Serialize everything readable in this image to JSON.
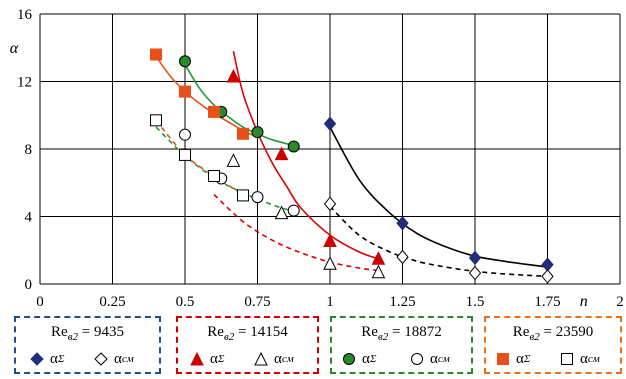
{
  "chart_data": {
    "type": "scatter",
    "xlabel": "n",
    "ylabel": "α",
    "xlim": [
      0,
      2
    ],
    "ylim": [
      0,
      16
    ],
    "x_ticks": [
      "0",
      "0.25",
      "0.5",
      "0.75",
      "1",
      "1.25",
      "1.5",
      "1.75",
      "2"
    ],
    "y_ticks": [
      "0",
      "4",
      "8",
      "12",
      "16"
    ],
    "grid": true,
    "legend_placement": "bottom",
    "series": [
      {
        "group": "Re = 9435",
        "name": "α_Σ",
        "color": "#1f2d7a",
        "marker": "diamond",
        "filled": true,
        "x": [
          1.0,
          1.25,
          1.5,
          1.75
        ],
        "y": [
          9.5,
          3.6,
          1.55,
          1.15
        ],
        "fit_x": [
          1.0,
          1.1,
          1.2,
          1.3,
          1.4,
          1.5,
          1.6,
          1.75
        ],
        "fit_y": [
          9.3,
          6.2,
          4.3,
          3.0,
          2.2,
          1.65,
          1.35,
          1.0
        ],
        "fit_color": "#000000",
        "fit_dash": false
      },
      {
        "group": "Re = 9435",
        "name": "α_см",
        "color": "#000000",
        "marker": "diamond",
        "filled": false,
        "x": [
          1.0,
          1.25,
          1.5,
          1.75
        ],
        "y": [
          4.75,
          1.6,
          0.65,
          0.45
        ],
        "fit_x": [
          1.0,
          1.1,
          1.2,
          1.3,
          1.4,
          1.5,
          1.6,
          1.75
        ],
        "fit_y": [
          4.6,
          2.9,
          1.95,
          1.35,
          1.0,
          0.75,
          0.6,
          0.45
        ],
        "fit_color": "#000000",
        "fit_dash": true
      },
      {
        "group": "Re = 14154",
        "name": "α_Σ",
        "color": "#cc0000",
        "marker": "triangle",
        "filled": true,
        "x": [
          0.667,
          0.833,
          1.0,
          1.167
        ],
        "y": [
          12.3,
          7.7,
          2.55,
          1.5
        ],
        "fit_x": [
          0.667,
          0.7,
          0.75,
          0.8,
          0.85,
          0.9,
          1.0,
          1.1,
          1.167
        ],
        "fit_y": [
          13.8,
          11.3,
          9.0,
          7.2,
          5.8,
          4.5,
          2.9,
          1.9,
          1.5
        ],
        "fit_color": "#e00000",
        "fit_dash": false
      },
      {
        "group": "Re = 14154",
        "name": "α_см",
        "color": "#000000",
        "marker": "triangle",
        "filled": false,
        "x": [
          0.667,
          0.833,
          1.0,
          1.167
        ],
        "y": [
          7.3,
          4.2,
          1.2,
          0.7
        ],
        "fit_x": [
          0.6,
          0.7,
          0.8,
          0.9,
          1.0,
          1.1,
          1.167
        ],
        "fit_y": [
          5.3,
          3.7,
          2.6,
          1.85,
          1.3,
          0.95,
          0.8
        ],
        "fit_color": "#e00000",
        "fit_dash": true
      },
      {
        "group": "Re = 18872",
        "name": "α_Σ",
        "color": "#2a8a2a",
        "marker": "circle",
        "filled": true,
        "x": [
          0.5,
          0.625,
          0.75,
          0.875
        ],
        "y": [
          13.2,
          10.2,
          9.0,
          8.15
        ],
        "fit_x": [
          0.5,
          0.55,
          0.6,
          0.65,
          0.7,
          0.75,
          0.8,
          0.875
        ],
        "fit_y": [
          13.0,
          11.6,
          10.6,
          9.9,
          9.3,
          8.9,
          8.55,
          8.2
        ],
        "fit_color": "#1f9a3a",
        "fit_dash": false
      },
      {
        "group": "Re = 18872",
        "name": "α_см",
        "color": "#000000",
        "marker": "circle",
        "filled": false,
        "x": [
          0.5,
          0.625,
          0.75,
          0.875
        ],
        "y": [
          8.85,
          6.25,
          5.15,
          4.35
        ],
        "fit_x": [
          0.4,
          0.5,
          0.6,
          0.7,
          0.8,
          0.875
        ],
        "fit_y": [
          9.3,
          7.6,
          6.3,
          5.4,
          4.7,
          4.3
        ],
        "fit_color": "#1f9a3a",
        "fit_dash": true
      },
      {
        "group": "Re = 23590",
        "name": "α_Σ",
        "color": "#e8501a",
        "marker": "square",
        "filled": true,
        "x": [
          0.4,
          0.5,
          0.6,
          0.7
        ],
        "y": [
          13.6,
          11.4,
          10.2,
          8.9
        ],
        "fit_x": [
          0.4,
          0.45,
          0.5,
          0.55,
          0.6,
          0.65,
          0.7,
          0.75
        ],
        "fit_y": [
          13.5,
          12.3,
          11.4,
          10.7,
          10.1,
          9.6,
          9.1,
          8.7
        ],
        "fit_color": "#e8501a",
        "fit_dash": false
      },
      {
        "group": "Re = 23590",
        "name": "α_см",
        "color": "#000000",
        "marker": "square",
        "filled": false,
        "x": [
          0.4,
          0.5,
          0.6,
          0.7
        ],
        "y": [
          9.7,
          7.65,
          6.4,
          5.25
        ],
        "fit_x": [
          0.4,
          0.5,
          0.6,
          0.7
        ],
        "fit_y": [
          9.7,
          7.65,
          6.4,
          5.3
        ],
        "fit_color": "#e8501a",
        "fit_dash": true
      }
    ]
  },
  "legend": [
    {
      "re_label": "Re",
      "re_sub": "в2",
      "re_value": "= 9435",
      "color": "#1f4e8c",
      "item1_label": "α",
      "item1_sub": "Σ",
      "item2_label": "α",
      "item2_sub": "см",
      "marker": "diamond",
      "fill1": "#1f2d7a"
    },
    {
      "re_label": "Re",
      "re_sub": "в2",
      "re_value": "= 14154",
      "color": "#cc0000",
      "item1_label": "α",
      "item1_sub": "Σ",
      "item2_label": "α",
      "item2_sub": "см",
      "marker": "triangle",
      "fill1": "#cc0000"
    },
    {
      "re_label": "Re",
      "re_sub": "в2",
      "re_value": "= 18872",
      "color": "#2a8a2a",
      "item1_label": "α",
      "item1_sub": "Σ",
      "item2_label": "α",
      "item2_sub": "см",
      "marker": "circle",
      "fill1": "#2a8a2a"
    },
    {
      "re_label": "Re",
      "re_sub": "в2",
      "re_value": "= 23590",
      "color": "#e8701a",
      "item1_label": "α",
      "item1_sub": "Σ",
      "item2_label": "α",
      "item2_sub": "см",
      "marker": "square",
      "fill1": "#e8501a"
    }
  ]
}
